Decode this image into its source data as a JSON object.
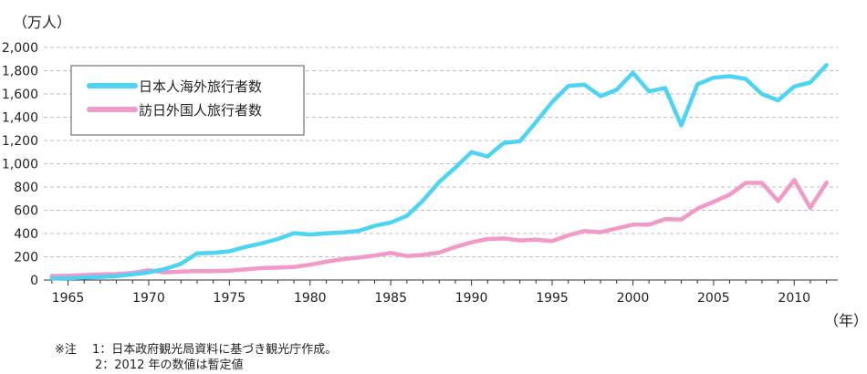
{
  "chart_data": {
    "type": "line",
    "y_unit": "（万人）",
    "x_unit": "（年）",
    "ylim": [
      0,
      2000
    ],
    "y_ticks": [
      0,
      200,
      400,
      600,
      800,
      1000,
      1200,
      1400,
      1600,
      1800,
      2000
    ],
    "y_tick_labels": [
      "0",
      "200",
      "400",
      "600",
      "800",
      "1,000",
      "1,200",
      "1,400",
      "1,600",
      "1,800",
      "2,000"
    ],
    "x_ticks": [
      1965,
      1970,
      1975,
      1980,
      1985,
      1990,
      1995,
      2000,
      2005,
      2010
    ],
    "grid": "horizontal dashed",
    "legend_position": "top-left",
    "series": [
      {
        "name": "日本人海外旅行者数",
        "color": "#4dd4f4",
        "x": [
          1964,
          1965,
          1966,
          1967,
          1968,
          1969,
          1970,
          1971,
          1972,
          1973,
          1974,
          1975,
          1976,
          1977,
          1978,
          1979,
          1980,
          1981,
          1982,
          1983,
          1984,
          1985,
          1986,
          1987,
          1988,
          1989,
          1990,
          1991,
          1992,
          1993,
          1994,
          1995,
          1996,
          1997,
          1998,
          1999,
          2000,
          2001,
          2002,
          2003,
          2004,
          2005,
          2006,
          2007,
          2008,
          2009,
          2010,
          2011,
          2012
        ],
        "values": [
          13,
          16,
          21,
          27,
          34,
          49,
          66,
          96,
          139,
          229,
          234,
          247,
          285,
          315,
          353,
          403,
          391,
          402,
          409,
          423,
          466,
          495,
          552,
          683,
          843,
          966,
          1100,
          1063,
          1179,
          1193,
          1358,
          1530,
          1669,
          1680,
          1581,
          1636,
          1782,
          1622,
          1652,
          1330,
          1683,
          1740,
          1753,
          1729,
          1599,
          1545,
          1664,
          1699,
          1849
        ]
      },
      {
        "name": "訪日外国人旅行者数",
        "color": "#f29ac7",
        "x": [
          1964,
          1965,
          1966,
          1967,
          1968,
          1969,
          1970,
          1971,
          1972,
          1973,
          1974,
          1975,
          1976,
          1977,
          1978,
          1979,
          1980,
          1981,
          1982,
          1983,
          1984,
          1985,
          1986,
          1987,
          1988,
          1989,
          1990,
          1991,
          1992,
          1993,
          1994,
          1995,
          1996,
          1997,
          1998,
          1999,
          2000,
          2001,
          2002,
          2003,
          2004,
          2005,
          2006,
          2007,
          2008,
          2009,
          2010,
          2011,
          2012
        ],
        "values": [
          35,
          37,
          43,
          48,
          52,
          61,
          85,
          66,
          72,
          78,
          76,
          81,
          91,
          103,
          107,
          113,
          132,
          158,
          179,
          193,
          211,
          233,
          206,
          216,
          236,
          284,
          324,
          353,
          358,
          341,
          347,
          335,
          384,
          422,
          411,
          444,
          476,
          477,
          524,
          521,
          614,
          673,
          733,
          835,
          835,
          679,
          861,
          622,
          837
        ]
      }
    ]
  },
  "notes": {
    "line1": "※注　 1：日本政府観光局資料に基づき観光庁作成。",
    "line2": "2：2012 年の数値は暫定値"
  }
}
